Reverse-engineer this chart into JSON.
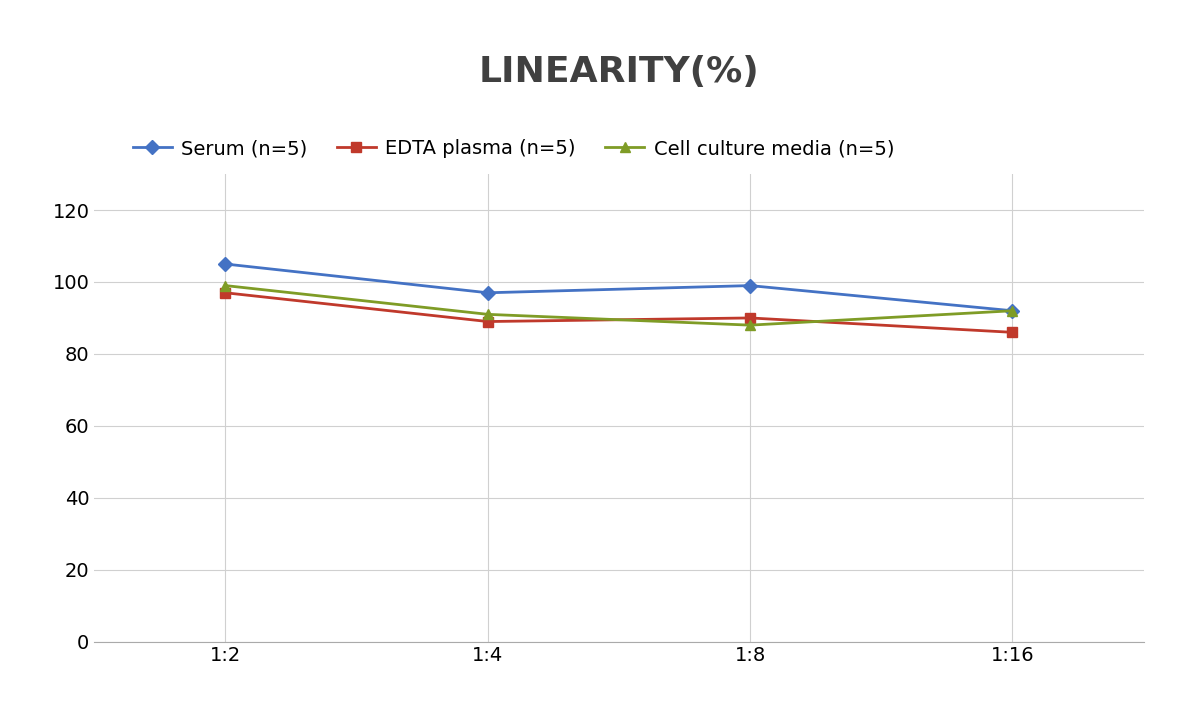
{
  "title": "LINEARITY(%)",
  "x_labels": [
    "1:2",
    "1:4",
    "1:8",
    "1:16"
  ],
  "series": [
    {
      "name": "Serum (n=5)",
      "values": [
        105,
        97,
        99,
        92
      ],
      "color": "#4472C4",
      "marker": "D",
      "marker_size": 7
    },
    {
      "name": "EDTA plasma (n=5)",
      "values": [
        97,
        89,
        90,
        86
      ],
      "color": "#C0392B",
      "marker": "s",
      "marker_size": 7
    },
    {
      "name": "Cell culture media (n=5)",
      "values": [
        99,
        91,
        88,
        92
      ],
      "color": "#7F9C26",
      "marker": "^",
      "marker_size": 7
    }
  ],
  "ylim": [
    0,
    130
  ],
  "yticks": [
    0,
    20,
    40,
    60,
    80,
    100,
    120
  ],
  "title_fontsize": 26,
  "title_color": "#404040",
  "legend_fontsize": 14,
  "tick_fontsize": 14,
  "background_color": "#FFFFFF",
  "grid_color": "#D0D0D0"
}
